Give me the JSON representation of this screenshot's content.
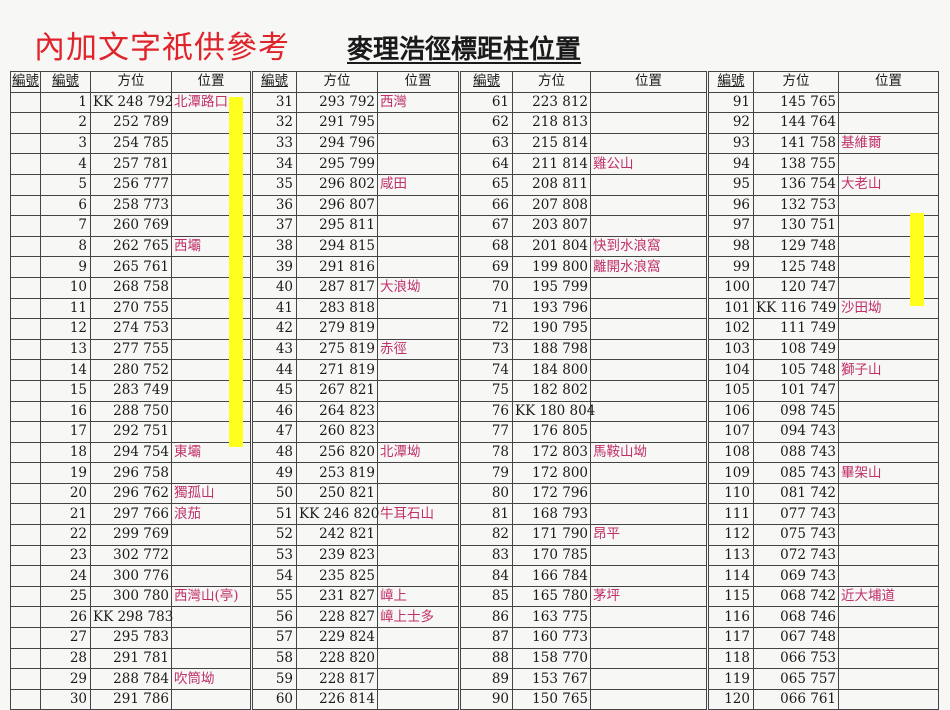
{
  "note": "內加文字祇供參考",
  "title": "麥理浩徑標距柱位置",
  "headers": {
    "lead": "編號",
    "number": "編號",
    "bearing": "方位",
    "location": "位置"
  },
  "colors": {
    "highlight": "#ffff1e",
    "place_text": "#c0306a",
    "note_text": "#e0242c"
  },
  "blocks": [
    {
      "rows": [
        {
          "no": "1",
          "coord": "KK 248 792",
          "place": "北潭路口"
        },
        {
          "no": "2",
          "coord": "252 789",
          "place": ""
        },
        {
          "no": "3",
          "coord": "254 785",
          "place": ""
        },
        {
          "no": "4",
          "coord": "257 781",
          "place": ""
        },
        {
          "no": "5",
          "coord": "256 777",
          "place": ""
        },
        {
          "no": "6",
          "coord": "258 773",
          "place": ""
        },
        {
          "no": "7",
          "coord": "260 769",
          "place": ""
        },
        {
          "no": "8",
          "coord": "262 765",
          "place": "西壩"
        },
        {
          "no": "9",
          "coord": "265 761",
          "place": ""
        },
        {
          "no": "10",
          "coord": "268 758",
          "place": ""
        },
        {
          "no": "11",
          "coord": "270 755",
          "place": ""
        },
        {
          "no": "12",
          "coord": "274 753",
          "place": ""
        },
        {
          "no": "13",
          "coord": "277 755",
          "place": ""
        },
        {
          "no": "14",
          "coord": "280 752",
          "place": ""
        },
        {
          "no": "15",
          "coord": "283 749",
          "place": ""
        },
        {
          "no": "16",
          "coord": "288 750",
          "place": ""
        },
        {
          "no": "17",
          "coord": "292 751",
          "place": ""
        },
        {
          "no": "18",
          "coord": "294 754",
          "place": "東壩"
        },
        {
          "no": "19",
          "coord": "296 758",
          "place": ""
        },
        {
          "no": "20",
          "coord": "296 762",
          "place": "獨孤山"
        },
        {
          "no": "21",
          "coord": "297 766",
          "place": "浪茄"
        },
        {
          "no": "22",
          "coord": "299 769",
          "place": ""
        },
        {
          "no": "23",
          "coord": "302 772",
          "place": ""
        },
        {
          "no": "24",
          "coord": "300 776",
          "place": ""
        },
        {
          "no": "25",
          "coord": "300 780",
          "place": "西灣山(亭)"
        },
        {
          "no": "26",
          "coord": "KK 298 783",
          "place": ""
        },
        {
          "no": "27",
          "coord": "295 783",
          "place": ""
        },
        {
          "no": "28",
          "coord": "291 781",
          "place": ""
        },
        {
          "no": "29",
          "coord": "288 784",
          "place": "吹筒坳"
        },
        {
          "no": "30",
          "coord": "291 786",
          "place": ""
        }
      ]
    },
    {
      "rows": [
        {
          "no": "31",
          "coord": "293 792",
          "place": "西灣"
        },
        {
          "no": "32",
          "coord": "291 795",
          "place": ""
        },
        {
          "no": "33",
          "coord": "294 796",
          "place": ""
        },
        {
          "no": "34",
          "coord": "295 799",
          "place": ""
        },
        {
          "no": "35",
          "coord": "296 802",
          "place": "咸田"
        },
        {
          "no": "36",
          "coord": "296 807",
          "place": ""
        },
        {
          "no": "37",
          "coord": "295 811",
          "place": ""
        },
        {
          "no": "38",
          "coord": "294 815",
          "place": ""
        },
        {
          "no": "39",
          "coord": "291 816",
          "place": ""
        },
        {
          "no": "40",
          "coord": "287 817",
          "place": "大浪坳"
        },
        {
          "no": "41",
          "coord": "283 818",
          "place": ""
        },
        {
          "no": "42",
          "coord": "279 819",
          "place": ""
        },
        {
          "no": "43",
          "coord": "275 819",
          "place": "赤徑"
        },
        {
          "no": "44",
          "coord": "271 819",
          "place": ""
        },
        {
          "no": "45",
          "coord": "267 821",
          "place": ""
        },
        {
          "no": "46",
          "coord": "264 823",
          "place": ""
        },
        {
          "no": "47",
          "coord": "260 823",
          "place": ""
        },
        {
          "no": "48",
          "coord": "256 820",
          "place": "北潭坳"
        },
        {
          "no": "49",
          "coord": "253 819",
          "place": ""
        },
        {
          "no": "50",
          "coord": "250 821",
          "place": ""
        },
        {
          "no": "51",
          "coord": "KK 246 820",
          "place": "牛耳石山"
        },
        {
          "no": "52",
          "coord": "242 821",
          "place": ""
        },
        {
          "no": "53",
          "coord": "239 823",
          "place": ""
        },
        {
          "no": "54",
          "coord": "235 825",
          "place": ""
        },
        {
          "no": "55",
          "coord": "231 827",
          "place": "嶂上"
        },
        {
          "no": "56",
          "coord": "228 827",
          "place": "嶂上士多"
        },
        {
          "no": "57",
          "coord": "229 824",
          "place": ""
        },
        {
          "no": "58",
          "coord": "228 820",
          "place": ""
        },
        {
          "no": "59",
          "coord": "228 817",
          "place": ""
        },
        {
          "no": "60",
          "coord": "226 814",
          "place": ""
        }
      ]
    },
    {
      "rows": [
        {
          "no": "61",
          "coord": "223 812",
          "place": ""
        },
        {
          "no": "62",
          "coord": "218 813",
          "place": ""
        },
        {
          "no": "63",
          "coord": "215 814",
          "place": ""
        },
        {
          "no": "64",
          "coord": "211 814",
          "place": "雞公山"
        },
        {
          "no": "65",
          "coord": "208 811",
          "place": ""
        },
        {
          "no": "66",
          "coord": "207 808",
          "place": ""
        },
        {
          "no": "67",
          "coord": "203 807",
          "place": ""
        },
        {
          "no": "68",
          "coord": "201 804",
          "place": "快到水浪窩"
        },
        {
          "no": "69",
          "coord": "199 800",
          "place": "離開水浪窩"
        },
        {
          "no": "70",
          "coord": "195 799",
          "place": ""
        },
        {
          "no": "71",
          "coord": "193 796",
          "place": ""
        },
        {
          "no": "72",
          "coord": "190 795",
          "place": ""
        },
        {
          "no": "73",
          "coord": "188 798",
          "place": ""
        },
        {
          "no": "74",
          "coord": "184 800",
          "place": ""
        },
        {
          "no": "75",
          "coord": "182 802",
          "place": ""
        },
        {
          "no": "76",
          "coord": "KK 180 804",
          "place": ""
        },
        {
          "no": "77",
          "coord": "176 805",
          "place": ""
        },
        {
          "no": "78",
          "coord": "172 803",
          "place": "馬鞍山坳"
        },
        {
          "no": "79",
          "coord": "172 800",
          "place": ""
        },
        {
          "no": "80",
          "coord": "172 796",
          "place": ""
        },
        {
          "no": "81",
          "coord": "168 793",
          "place": ""
        },
        {
          "no": "82",
          "coord": "171 790",
          "place": "昂平"
        },
        {
          "no": "83",
          "coord": "170 785",
          "place": ""
        },
        {
          "no": "84",
          "coord": "166 784",
          "place": ""
        },
        {
          "no": "85",
          "coord": "165 780",
          "place": "茅坪"
        },
        {
          "no": "86",
          "coord": "163 775",
          "place": ""
        },
        {
          "no": "87",
          "coord": "160 773",
          "place": ""
        },
        {
          "no": "88",
          "coord": "158 770",
          "place": ""
        },
        {
          "no": "89",
          "coord": "153 767",
          "place": ""
        },
        {
          "no": "90",
          "coord": "150 765",
          "place": ""
        }
      ]
    },
    {
      "rows": [
        {
          "no": "91",
          "coord": "145 765",
          "place": ""
        },
        {
          "no": "92",
          "coord": "144 764",
          "place": ""
        },
        {
          "no": "93",
          "coord": "141 758",
          "place": "基維爾"
        },
        {
          "no": "94",
          "coord": "138 755",
          "place": ""
        },
        {
          "no": "95",
          "coord": "136 754",
          "place": "大老山"
        },
        {
          "no": "96",
          "coord": "132 753",
          "place": ""
        },
        {
          "no": "97",
          "coord": "130 751",
          "place": ""
        },
        {
          "no": "98",
          "coord": "129 748",
          "place": ""
        },
        {
          "no": "99",
          "coord": "125 748",
          "place": ""
        },
        {
          "no": "100",
          "coord": "120 747",
          "place": ""
        },
        {
          "no": "101",
          "coord": "KK 116 749",
          "place": "沙田坳"
        },
        {
          "no": "102",
          "coord": "111 749",
          "place": ""
        },
        {
          "no": "103",
          "coord": "108 749",
          "place": ""
        },
        {
          "no": "104",
          "coord": "105 748",
          "place": "獅子山"
        },
        {
          "no": "105",
          "coord": "101 747",
          "place": ""
        },
        {
          "no": "106",
          "coord": "098 745",
          "place": ""
        },
        {
          "no": "107",
          "coord": "094 743",
          "place": ""
        },
        {
          "no": "108",
          "coord": "088 743",
          "place": ""
        },
        {
          "no": "109",
          "coord": "085 743",
          "place": "畢架山"
        },
        {
          "no": "110",
          "coord": "081 742",
          "place": ""
        },
        {
          "no": "111",
          "coord": "077 743",
          "place": ""
        },
        {
          "no": "112",
          "coord": "075 743",
          "place": ""
        },
        {
          "no": "113",
          "coord": "072 743",
          "place": ""
        },
        {
          "no": "114",
          "coord": "069 743",
          "place": ""
        },
        {
          "no": "115",
          "coord": "068 742",
          "place": "近大埔道"
        },
        {
          "no": "116",
          "coord": "068 746",
          "place": ""
        },
        {
          "no": "117",
          "coord": "067 748",
          "place": ""
        },
        {
          "no": "118",
          "coord": "066 753",
          "place": ""
        },
        {
          "no": "119",
          "coord": "065 757",
          "place": ""
        },
        {
          "no": "120",
          "coord": "066 761",
          "place": ""
        }
      ]
    }
  ]
}
